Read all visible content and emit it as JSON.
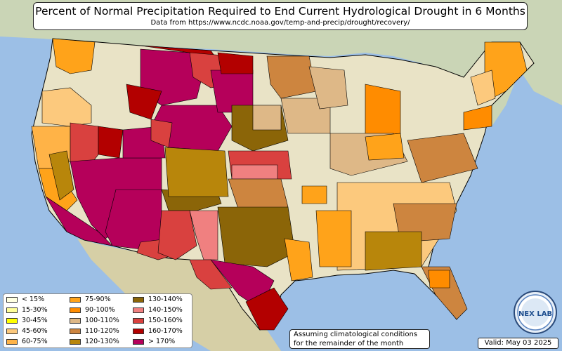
{
  "title": "Percent of Normal Precipitation Required to End Current Hydrological Drought in 6 Months",
  "subtitle": "Data from https://www.ncdc.noaa.gov/temp-and-precip/drought/recovery/",
  "note_line1": "Assuming climatological conditions",
  "note_line2": "for the remainder of the month",
  "valid": "Valid: May 03 2025",
  "logo": {
    "icon": "nexlab-logo",
    "text": "NEX LAB"
  },
  "colors": {
    "ocean": "#9cbfe6",
    "land": "#e9e3c6",
    "border": "#000000"
  },
  "legend": [
    {
      "label": "< 15%",
      "color": "#ffffe0"
    },
    {
      "label": "15-30%",
      "color": "#ffff99"
    },
    {
      "label": "30-45%",
      "color": "#ffff00"
    },
    {
      "label": "45-60%",
      "color": "#fcc97d"
    },
    {
      "label": "60-75%",
      "color": "#ffb347"
    },
    {
      "label": "75-90%",
      "color": "#ffa31a"
    },
    {
      "label": "90-100%",
      "color": "#ff8c00"
    },
    {
      "label": "100-110%",
      "color": "#deb887"
    },
    {
      "label": "110-120%",
      "color": "#cd853f"
    },
    {
      "label": "120-130%",
      "color": "#b8860b"
    },
    {
      "label": "130-140%",
      "color": "#8b6508"
    },
    {
      "label": "140-150%",
      "color": "#f08080"
    },
    {
      "label": "150-160%",
      "color": "#d9413f"
    },
    {
      "label": "160-170%",
      "color": "#b30000"
    },
    {
      "label": "> 170%",
      "color": "#b5005a"
    }
  ]
}
